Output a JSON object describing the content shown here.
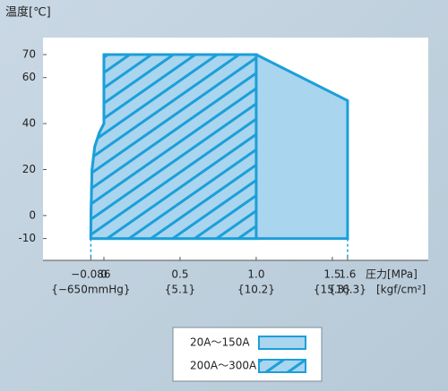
{
  "chart_data": {
    "type": "polygon",
    "y_label": "温度[℃]",
    "x_label": "圧力[MPa]",
    "x_label2": "[kgf/cm²]",
    "xlim": [
      -0.4,
      2.13
    ],
    "ylim": [
      -19.5,
      77.4
    ],
    "xticks": [
      {
        "value": -0.086,
        "label": "−0.086"
      },
      0,
      0.5,
      {
        "value": 1,
        "label": "1.0"
      },
      1.5,
      1.6
    ],
    "x_sublabels": [
      "{−650mmHg}",
      null,
      "{5.1}",
      "{10.2}",
      "{15.3}",
      "{16.3}"
    ],
    "yticks": [
      -10,
      0,
      20,
      40,
      60,
      70
    ],
    "dashed_ticks": [
      -0.086,
      1.6
    ],
    "series": [
      {
        "name": "20A～150A",
        "color": "#a9d5ee",
        "stroke": "#1b9fd9",
        "hatch": false,
        "x": [
          -0.086,
          -0.085,
          -0.078,
          -0.06,
          -0.03,
          0,
          0,
          1,
          1.6,
          1.6
        ],
        "y": [
          -10,
          0,
          20,
          30,
          36,
          40,
          70,
          70,
          50,
          -10
        ]
      },
      {
        "name": "200A～300A",
        "color": "#a9d5ee",
        "stroke": "#1b9fd9",
        "hatch": true,
        "x": [
          -0.086,
          -0.085,
          -0.078,
          -0.06,
          -0.03,
          0,
          0,
          1,
          1
        ],
        "y": [
          -10,
          0,
          20,
          30,
          36,
          40,
          70,
          70,
          -10
        ]
      }
    ]
  }
}
